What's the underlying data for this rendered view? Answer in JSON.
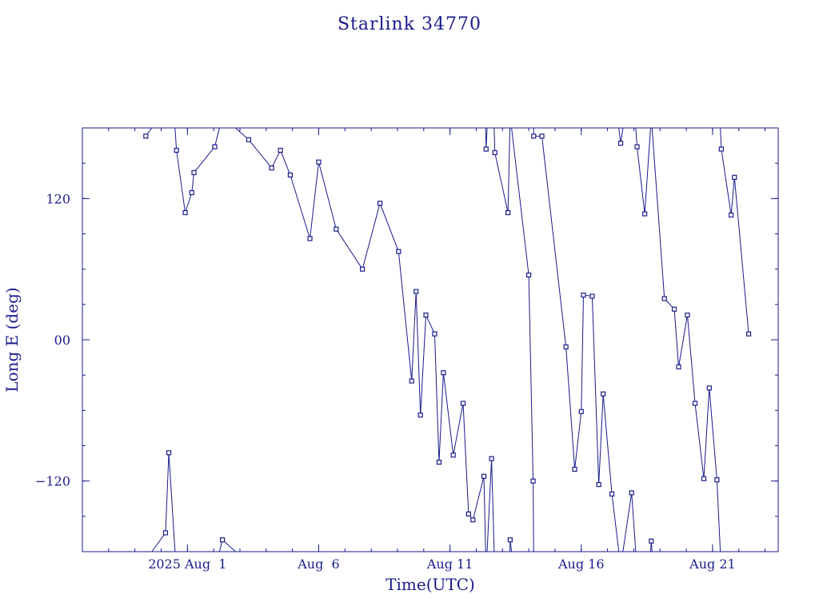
{
  "chart_data": {
    "type": "line",
    "title": "Starlink 34770",
    "xlabel": "Time(UTC)",
    "ylabel": "Long E (deg)",
    "x_unit": "days",
    "xlim": [
      "2025-07-28T00:00",
      "2025-08-23T12:00"
    ],
    "ylim": [
      -180,
      180
    ],
    "x_ticks": [
      {
        "label": "2025 Aug  1",
        "value": "2025-08-01T00:00"
      },
      {
        "label": "Aug  6",
        "value": "2025-08-06T00:00"
      },
      {
        "label": "Aug 11",
        "value": "2025-08-11T00:00"
      },
      {
        "label": "Aug 16",
        "value": "2025-08-16T00:00"
      },
      {
        "label": "Aug 21",
        "value": "2025-08-21T00:00"
      }
    ],
    "y_ticks": [
      {
        "label": "120",
        "value": 120
      },
      {
        "label": "00",
        "value": 0
      },
      {
        "label": "−120",
        "value": -120
      }
    ],
    "y_wraps": true,
    "color": "#1a1a8c",
    "grid": false,
    "series": [
      {
        "marker": "square",
        "points": [
          {
            "t": "2025-07-30T10:00",
            "y": 173
          },
          {
            "t": "2025-07-31T04:00",
            "y": -164
          },
          {
            "t": "2025-07-31T07:00",
            "y": -96
          },
          {
            "t": "2025-07-31T14:00",
            "y": 161
          },
          {
            "t": "2025-07-31T22:00",
            "y": 108
          },
          {
            "t": "2025-08-01T04:00",
            "y": 125
          },
          {
            "t": "2025-08-01T06:00",
            "y": 142
          },
          {
            "t": "2025-08-02T01:00",
            "y": 164
          },
          {
            "t": "2025-08-02T08:00",
            "y": -170
          },
          {
            "t": "2025-08-03T08:00",
            "y": 170
          },
          {
            "t": "2025-08-04T05:00",
            "y": 146
          },
          {
            "t": "2025-08-04T13:00",
            "y": 161
          },
          {
            "t": "2025-08-04T22:00",
            "y": 140
          },
          {
            "t": "2025-08-05T16:00",
            "y": 86
          },
          {
            "t": "2025-08-06T00:00",
            "y": 151
          },
          {
            "t": "2025-08-06T16:00",
            "y": 94
          },
          {
            "t": "2025-08-07T16:00",
            "y": 60
          },
          {
            "t": "2025-08-08T08:00",
            "y": 116
          },
          {
            "t": "2025-08-09T01:00",
            "y": 75
          },
          {
            "t": "2025-08-09T13:00",
            "y": -35
          },
          {
            "t": "2025-08-09T17:00",
            "y": 41
          },
          {
            "t": "2025-08-09T21:00",
            "y": -64
          },
          {
            "t": "2025-08-10T02:00",
            "y": 21
          },
          {
            "t": "2025-08-10T10:00",
            "y": 5
          },
          {
            "t": "2025-08-10T14:00",
            "y": -104
          },
          {
            "t": "2025-08-10T18:00",
            "y": -28
          },
          {
            "t": "2025-08-11T03:00",
            "y": -98
          },
          {
            "t": "2025-08-11T12:00",
            "y": -54
          },
          {
            "t": "2025-08-11T17:00",
            "y": -148
          },
          {
            "t": "2025-08-11T21:00",
            "y": -153
          },
          {
            "t": "2025-08-12T07:00",
            "y": -116
          },
          {
            "t": "2025-08-12T09:00",
            "y": 162
          },
          {
            "t": "2025-08-12T14:00",
            "y": -101
          },
          {
            "t": "2025-08-12T17:00",
            "y": 159
          },
          {
            "t": "2025-08-13T05:00",
            "y": 108
          },
          {
            "t": "2025-08-13T07:00",
            "y": -170
          },
          {
            "t": "2025-08-14T00:00",
            "y": 55
          },
          {
            "t": "2025-08-14T04:00",
            "y": -120
          },
          {
            "t": "2025-08-14T04:30",
            "y": 173
          },
          {
            "t": "2025-08-14T12:00",
            "y": 173
          },
          {
            "t": "2025-08-15T10:00",
            "y": -6
          },
          {
            "t": "2025-08-15T18:00",
            "y": -110
          },
          {
            "t": "2025-08-16T00:00",
            "y": -61
          },
          {
            "t": "2025-08-16T02:00",
            "y": 38
          },
          {
            "t": "2025-08-16T10:00",
            "y": 37
          },
          {
            "t": "2025-08-16T16:00",
            "y": -123
          },
          {
            "t": "2025-08-16T20:00",
            "y": -46
          },
          {
            "t": "2025-08-17T04:00",
            "y": -131
          },
          {
            "t": "2025-08-17T12:00",
            "y": 167
          },
          {
            "t": "2025-08-17T22:00",
            "y": -130
          },
          {
            "t": "2025-08-18T03:00",
            "y": 164
          },
          {
            "t": "2025-08-18T10:00",
            "y": 107
          },
          {
            "t": "2025-08-18T16:00",
            "y": -171
          },
          {
            "t": "2025-08-19T04:00",
            "y": 35
          },
          {
            "t": "2025-08-19T13:00",
            "y": 26
          },
          {
            "t": "2025-08-19T17:00",
            "y": -23
          },
          {
            "t": "2025-08-20T01:00",
            "y": 21
          },
          {
            "t": "2025-08-20T08:00",
            "y": -54
          },
          {
            "t": "2025-08-20T16:00",
            "y": -118
          },
          {
            "t": "2025-08-20T21:00",
            "y": -41
          },
          {
            "t": "2025-08-21T04:00",
            "y": -119
          },
          {
            "t": "2025-08-21T08:00",
            "y": 162
          },
          {
            "t": "2025-08-21T17:00",
            "y": 106
          },
          {
            "t": "2025-08-21T20:00",
            "y": 138
          },
          {
            "t": "2025-08-22T09:00",
            "y": 5
          }
        ]
      }
    ]
  }
}
